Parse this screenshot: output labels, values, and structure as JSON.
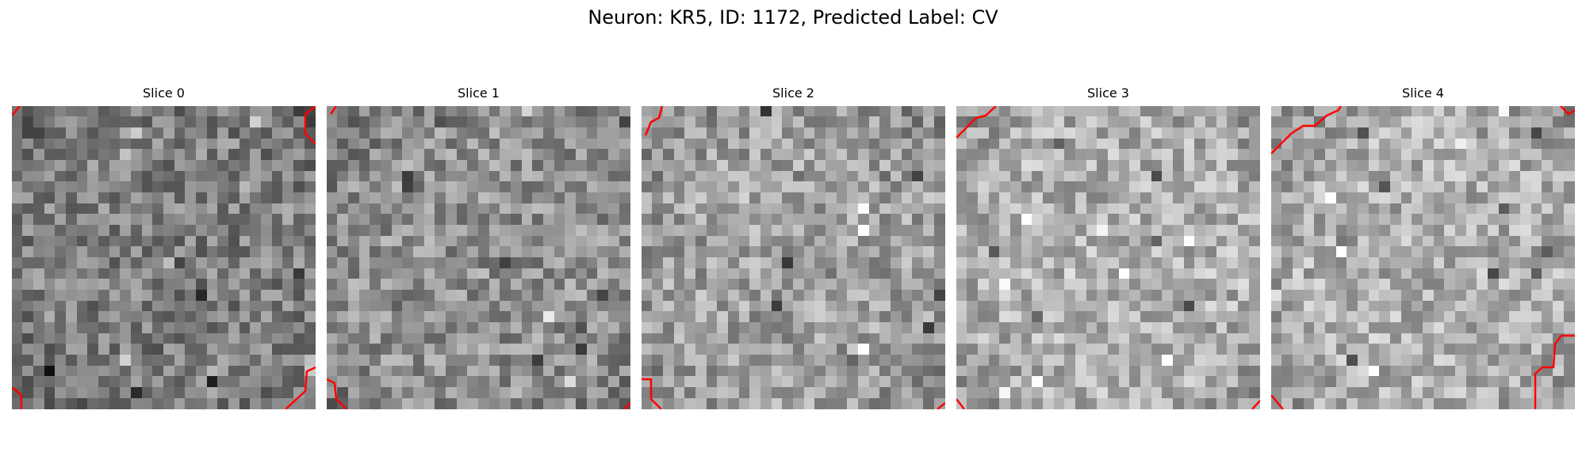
{
  "figure": {
    "title": "Neuron: KR5, ID: 1172, Predicted Label: CV",
    "overlay_color": "#ff0000"
  },
  "panels": [
    {
      "title": "Slice 0",
      "tone": "dark",
      "contours": [
        "M10,0 L0,12",
        "M383,0 L370,10 L370,35 L383,48",
        "M0,355 L12,365 L12,383",
        "M345,383 L370,360 L372,335 L383,330"
      ]
    },
    {
      "title": "Slice 1",
      "tone": "mid",
      "contours": [
        "M5,10 L12,0",
        "M0,345 L10,350 L12,370 L25,383",
        "M375,383 L383,375"
      ]
    },
    {
      "title": "Slice 2",
      "tone": "mid-light",
      "contours": [
        "M5,37 L12,20 L22,15 L26,0",
        "M0,345 L12,345 L12,370 L25,383",
        "M373,383 L383,375"
      ]
    },
    {
      "title": "Slice 3",
      "tone": "light",
      "contours": [
        "M0,40 L25,15 L37,12 L50,0",
        "M0,370 L10,383",
        "M373,383 L383,372"
      ]
    },
    {
      "title": "Slice 4",
      "tone": "light",
      "contours": [
        "M0,60 L25,35 L40,25 L55,25 L70,12 L85,5 L88,0",
        "M365,0 L375,10 L383,5",
        "M0,365 L15,383",
        "M333,383 L333,338 L342,330 L356,330 L358,300 L366,290 L383,290"
      ]
    }
  ]
}
